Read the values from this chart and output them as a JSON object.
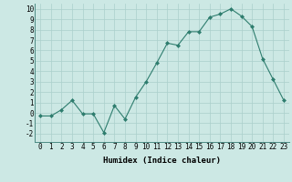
{
  "x": [
    0,
    1,
    2,
    3,
    4,
    5,
    6,
    7,
    8,
    9,
    10,
    11,
    12,
    13,
    14,
    15,
    16,
    17,
    18,
    19,
    20,
    21,
    22,
    23
  ],
  "y": [
    -0.3,
    -0.3,
    0.3,
    1.2,
    -0.1,
    -0.1,
    -1.9,
    0.7,
    -0.6,
    1.5,
    3.0,
    4.8,
    6.7,
    6.5,
    7.8,
    7.8,
    9.2,
    9.5,
    10.0,
    9.3,
    8.3,
    5.2,
    3.2,
    1.2
  ],
  "line_color": "#2e7d6e",
  "marker": "D",
  "marker_size": 2.0,
  "bg_color": "#cce8e4",
  "grid_color": "#aacfcb",
  "xlabel": "Humidex (Indice chaleur)",
  "ylim": [
    -2.8,
    10.5
  ],
  "xlim": [
    -0.5,
    23.5
  ],
  "yticks": [
    -2,
    -1,
    0,
    1,
    2,
    3,
    4,
    5,
    6,
    7,
    8,
    9,
    10
  ],
  "xticks": [
    0,
    1,
    2,
    3,
    4,
    5,
    6,
    7,
    8,
    9,
    10,
    11,
    12,
    13,
    14,
    15,
    16,
    17,
    18,
    19,
    20,
    21,
    22,
    23
  ],
  "xlabel_fontsize": 6.5,
  "tick_fontsize": 5.5
}
